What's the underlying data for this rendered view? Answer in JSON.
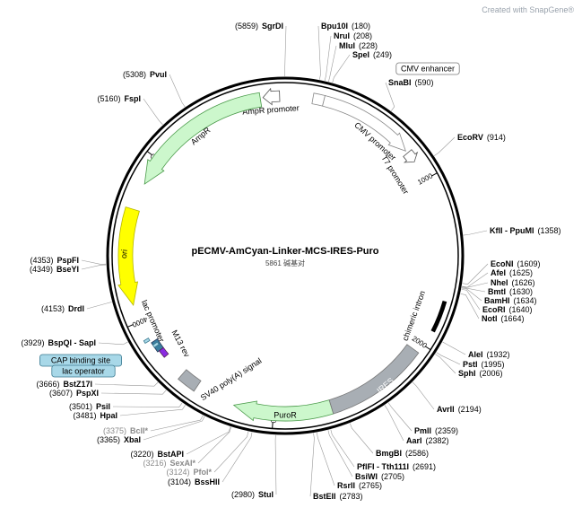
{
  "watermark": "Created with SnapGene®",
  "title": "pECMV-AmCyan-Linker-MCS-IRES-Puro",
  "subtitle": "5861 碱基对",
  "ticks": [
    1000,
    2000,
    3000,
    4000,
    5000
  ],
  "sites": [
    {
      "name": "SgrDI",
      "position": "(5859)"
    },
    {
      "name": "PvuI",
      "position": "(5308)"
    },
    {
      "name": "FspI",
      "position": "(5160)"
    },
    {
      "name": "PspFI",
      "position": "(4353)"
    },
    {
      "name": "BseYI",
      "position": "(4349)"
    },
    {
      "name": "DrdI",
      "position": "(4153)"
    },
    {
      "name": "BspQI - SapI",
      "position": "(3929)"
    },
    {
      "name": "BstZ17I",
      "position": "(3666)"
    },
    {
      "name": "PspXI",
      "position": "(3607)"
    },
    {
      "name": "PsiI",
      "position": "(3501)"
    },
    {
      "name": "HpaI",
      "position": "(3481)"
    },
    {
      "name": "BclI*",
      "position": "(3375)",
      "color": "#8a8a8a"
    },
    {
      "name": "XbaI",
      "position": "(3365)"
    },
    {
      "name": "BstAPI",
      "position": "(3220)"
    },
    {
      "name": "SexAI*",
      "position": "(3216)",
      "color": "#8a8a8a"
    },
    {
      "name": "PfoI*",
      "position": "(3124)",
      "color": "#8a8a8a"
    },
    {
      "name": "BssHII",
      "position": "(3104)"
    },
    {
      "name": "StuI",
      "position": "(2980)"
    },
    {
      "name": "Bpu10I",
      "position": "(180)"
    },
    {
      "name": "NruI",
      "position": "(208)"
    },
    {
      "name": "MluI",
      "position": "(228)"
    },
    {
      "name": "SpeI",
      "position": "(249)"
    },
    {
      "name": "SnaBI",
      "position": "(590)"
    },
    {
      "name": "EcoRV",
      "position": "(914)"
    },
    {
      "name": "KflI - PpuMI",
      "position": "(1358)"
    },
    {
      "name": "EcoNI",
      "position": "(1609)"
    },
    {
      "name": "AfeI",
      "position": "(1625)"
    },
    {
      "name": "NheI",
      "position": "(1626)"
    },
    {
      "name": "BmtI",
      "position": "(1630)"
    },
    {
      "name": "BamHI",
      "position": "(1634)"
    },
    {
      "name": "EcoRI",
      "position": "(1640)"
    },
    {
      "name": "NotI",
      "position": "(1664)"
    },
    {
      "name": "AleI",
      "position": "(1932)"
    },
    {
      "name": "PstI",
      "position": "(1995)"
    },
    {
      "name": "SphI",
      "position": "(2006)"
    },
    {
      "name": "AvrII",
      "position": "(2194)"
    },
    {
      "name": "PmlI",
      "position": "(2359)"
    },
    {
      "name": "AarI",
      "position": "(2382)"
    },
    {
      "name": "BmgBI",
      "position": "(2586)"
    },
    {
      "name": "PflFI - Tth111I",
      "position": "(2691)"
    },
    {
      "name": "BsiWI",
      "position": "(2705)"
    },
    {
      "name": "RsrII",
      "position": "(2765)"
    },
    {
      "name": "BstEII",
      "position": "(2783)"
    }
  ],
  "features": [
    {
      "label": "CMV enhancer"
    },
    {
      "label": "AmpR promoter"
    },
    {
      "label": "AmpR"
    },
    {
      "label": "CMV promoter"
    },
    {
      "label": "T7 promoter"
    },
    {
      "label": "ori"
    },
    {
      "label": "lac promoter"
    },
    {
      "label": "M13 rev"
    },
    {
      "label": "CAP binding site"
    },
    {
      "label": "lac operator"
    },
    {
      "label": "SV40 poly(A) signal"
    },
    {
      "label": "PuroR"
    },
    {
      "label": "IRES"
    },
    {
      "label": "chimeric intron"
    }
  ]
}
